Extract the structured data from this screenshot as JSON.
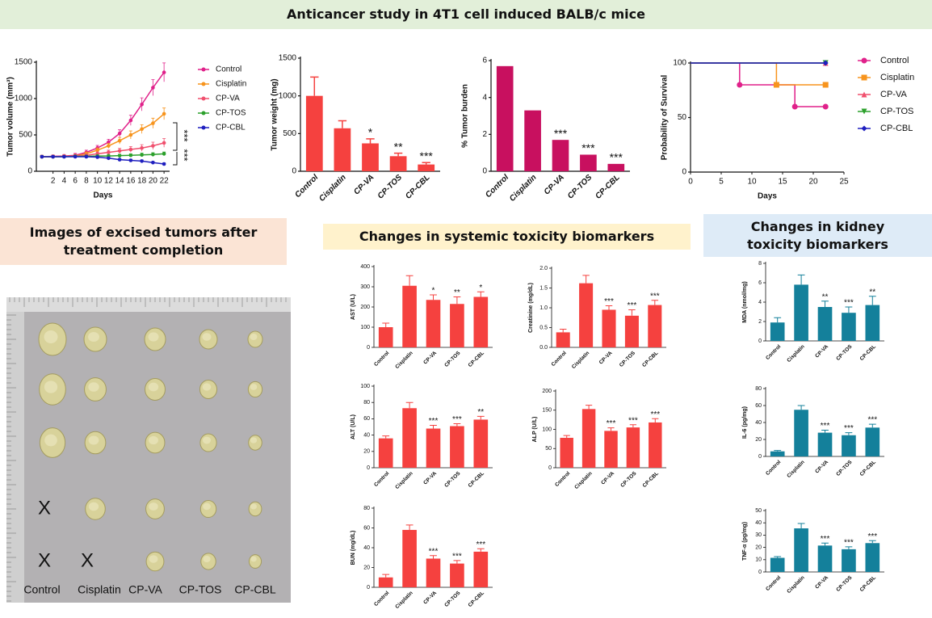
{
  "sections": {
    "main": "Anticancer study in 4T1 cell induced BALB/c mice",
    "images": "Images of excised tumors after treatment completion",
    "systemic": "Changes in systemic toxicity biomarkers",
    "kidney": "Changes in kidney toxicity biomarkers"
  },
  "photo": {
    "groups": [
      "Control",
      "Cisplatin",
      "CP-VA",
      "CP-TOS",
      "CP-CBL"
    ],
    "absent": "X"
  },
  "chart_data": [
    {
      "type": "line",
      "xlabel": "Days",
      "ylabel": "Tumor volume (mm³)",
      "x": [
        0,
        2,
        4,
        6,
        8,
        10,
        12,
        14,
        16,
        18,
        20,
        22
      ],
      "xlim": [
        -1,
        23
      ],
      "xticks": [
        2,
        4,
        6,
        8,
        10,
        12,
        14,
        16,
        18,
        20,
        22
      ],
      "ylim": [
        0,
        1500
      ],
      "yticks": [
        0,
        500,
        1000,
        1500
      ],
      "annotations": [
        "***",
        "***"
      ],
      "series": [
        {
          "name": "Control",
          "color": "#e0218a",
          "values": [
            200,
            205,
            210,
            220,
            260,
            320,
            400,
            520,
            700,
            920,
            1150,
            1360
          ],
          "errors": [
            20,
            20,
            20,
            25,
            30,
            35,
            40,
            50,
            70,
            90,
            110,
            130
          ]
        },
        {
          "name": "Cisplatin",
          "color": "#f7941d",
          "values": [
            200,
            200,
            205,
            210,
            240,
            290,
            350,
            420,
            500,
            580,
            660,
            790
          ],
          "errors": [
            20,
            20,
            20,
            20,
            25,
            30,
            35,
            45,
            55,
            60,
            70,
            80
          ]
        },
        {
          "name": "CP-VA",
          "color": "#f0506e",
          "values": [
            200,
            200,
            205,
            210,
            220,
            240,
            260,
            280,
            300,
            320,
            350,
            390
          ],
          "errors": [
            15,
            15,
            15,
            15,
            20,
            25,
            30,
            35,
            40,
            45,
            50,
            60
          ]
        },
        {
          "name": "CP-TOS",
          "color": "#2ca02c",
          "values": [
            200,
            200,
            200,
            205,
            205,
            210,
            210,
            215,
            220,
            225,
            230,
            240
          ],
          "errors": [
            15,
            15,
            15,
            15,
            15,
            15,
            20,
            20,
            20,
            25,
            25,
            25
          ]
        },
        {
          "name": "CP-CBL",
          "color": "#1f1fbf",
          "values": [
            200,
            200,
            200,
            200,
            200,
            195,
            180,
            160,
            150,
            140,
            120,
            100
          ],
          "errors": [
            15,
            15,
            15,
            15,
            15,
            15,
            15,
            15,
            15,
            15,
            15,
            15
          ]
        }
      ]
    },
    {
      "type": "bar",
      "ylabel": "Tumor weight (mg)",
      "categories": [
        "Control",
        "Cisplatin",
        "CP-VA",
        "CP-TOS",
        "CP-CBL"
      ],
      "values": [
        1000,
        570,
        370,
        200,
        90
      ],
      "errors": [
        250,
        100,
        60,
        40,
        25
      ],
      "significance": [
        null,
        null,
        "*",
        "**",
        "***"
      ],
      "color": "#f5413f",
      "ylim": [
        0,
        1500
      ],
      "yticks": [
        0,
        500,
        1000,
        1500
      ]
    },
    {
      "type": "bar",
      "ylabel": "% Tumor burden",
      "categories": [
        "Control",
        "Cisplatin",
        "CP-VA",
        "CP-TOS",
        "CP-CBL"
      ],
      "values": [
        5.7,
        3.3,
        1.7,
        0.9,
        0.4
      ],
      "significance": [
        null,
        null,
        "***",
        "***",
        "***"
      ],
      "color": "#c8105f",
      "ylim": [
        0,
        6
      ],
      "yticks": [
        0,
        2,
        4,
        6
      ]
    },
    {
      "type": "step",
      "xlabel": "Days",
      "ylabel": "Probability of Survival",
      "xlim": [
        0,
        25
      ],
      "xticks": [
        0,
        5,
        10,
        15,
        20,
        25
      ],
      "ylim": [
        0,
        100
      ],
      "yticks": [
        0,
        50,
        100
      ],
      "series": [
        {
          "name": "Control",
          "color": "#e0218a",
          "marker": "circle",
          "x": [
            0,
            8,
            17,
            22
          ],
          "values": [
            100,
            80,
            60,
            60
          ]
        },
        {
          "name": "Cisplatin",
          "color": "#f7941d",
          "marker": "square",
          "x": [
            0,
            14,
            22
          ],
          "values": [
            100,
            80,
            80
          ]
        },
        {
          "name": "CP-VA",
          "color": "#f0506e",
          "marker": "triangle",
          "x": [
            0,
            22
          ],
          "values": [
            100,
            100
          ]
        },
        {
          "name": "CP-TOS",
          "color": "#2ca02c",
          "marker": "triangle-down",
          "x": [
            0,
            22
          ],
          "values": [
            100,
            100
          ]
        },
        {
          "name": "CP-CBL",
          "color": "#1f1fbf",
          "marker": "diamond",
          "x": [
            0,
            22
          ],
          "values": [
            100,
            100
          ]
        }
      ]
    },
    {
      "type": "bar",
      "ylabel": "AST (U/L)",
      "categories": [
        "Control",
        "Cisplatin",
        "CP-VA",
        "CP-TOS",
        "CP-CBL"
      ],
      "values": [
        100,
        305,
        235,
        215,
        250
      ],
      "errors": [
        20,
        50,
        25,
        35,
        25
      ],
      "significance": [
        null,
        null,
        "*",
        "**",
        "*"
      ],
      "color": "#f5413f",
      "ylim": [
        0,
        400
      ],
      "yticks": [
        0,
        100,
        200,
        300,
        400
      ]
    },
    {
      "type": "bar",
      "ylabel": "Creatinine (mg/dL)",
      "categories": [
        "Control",
        "Cisplatin",
        "CP-VA",
        "CP-TOS",
        "CP-CBL"
      ],
      "values": [
        0.38,
        1.62,
        0.95,
        0.8,
        1.07
      ],
      "errors": [
        0.08,
        0.2,
        0.1,
        0.15,
        0.12
      ],
      "significance": [
        null,
        null,
        "***",
        "***",
        "***"
      ],
      "color": "#f5413f",
      "ylim": [
        0,
        2
      ],
      "yticks": [
        {
          "value": 0,
          "label": "0.0"
        },
        0.5,
        {
          "value": 1,
          "label": "1.0"
        },
        1.5,
        {
          "value": 2,
          "label": "2.0"
        }
      ]
    },
    {
      "type": "bar",
      "ylabel": "ALT (U/L)",
      "categories": [
        "Control",
        "Cisplatin",
        "CP-VA",
        "CP-TOS",
        "CP-CBL"
      ],
      "values": [
        36,
        73,
        48,
        51,
        59
      ],
      "errors": [
        3,
        7,
        4,
        3,
        4
      ],
      "significance": [
        null,
        null,
        "***",
        "***",
        "**"
      ],
      "color": "#f5413f",
      "ylim": [
        0,
        100
      ],
      "yticks": [
        0,
        20,
        40,
        60,
        80,
        100
      ]
    },
    {
      "type": "bar",
      "ylabel": "ALP (U/L)",
      "categories": [
        "Control",
        "Cisplatin",
        "CP-VA",
        "CP-TOS",
        "CP-CBL"
      ],
      "values": [
        78,
        153,
        96,
        105,
        118
      ],
      "errors": [
        6,
        10,
        8,
        7,
        10
      ],
      "significance": [
        null,
        null,
        "***",
        "***",
        "***"
      ],
      "color": "#f5413f",
      "ylim": [
        0,
        200
      ],
      "yticks": [
        0,
        50,
        100,
        150,
        200
      ]
    },
    {
      "type": "bar",
      "ylabel": "BUN (mg/dL)",
      "categories": [
        "Control",
        "Cisplatin",
        "CP-VA",
        "CP-TOS",
        "CP-CBL"
      ],
      "values": [
        10,
        58,
        29,
        24,
        36
      ],
      "errors": [
        3,
        5,
        3,
        3,
        3
      ],
      "significance": [
        null,
        null,
        "***",
        "***",
        "***"
      ],
      "color": "#f5413f",
      "ylim": [
        0,
        80
      ],
      "yticks": [
        0,
        20,
        40,
        60,
        80
      ]
    },
    {
      "type": "bar",
      "ylabel": "MDA (nmol/mg)",
      "categories": [
        "Control",
        "Cisplatin",
        "CP-VA",
        "CP-TOS",
        "CP-CBL"
      ],
      "values": [
        1.9,
        5.8,
        3.5,
        2.9,
        3.7
      ],
      "errors": [
        0.5,
        1,
        0.6,
        0.6,
        0.9
      ],
      "significance": [
        null,
        null,
        "**",
        "***",
        "**"
      ],
      "color": "#14809b",
      "ylim": [
        0,
        8
      ],
      "yticks": [
        0,
        2,
        4,
        6,
        8
      ]
    },
    {
      "type": "bar",
      "ylabel": "IL-6 (pg/mg)",
      "categories": [
        "Control",
        "Cisplatin",
        "CP-VA",
        "CP-TOS",
        "CP-CBL"
      ],
      "values": [
        6,
        55,
        28,
        25,
        34
      ],
      "errors": [
        1,
        5,
        3,
        3,
        4
      ],
      "significance": [
        null,
        null,
        "***",
        "***",
        "***"
      ],
      "color": "#14809b",
      "ylim": [
        0,
        80
      ],
      "yticks": [
        0,
        20,
        40,
        60,
        80
      ]
    },
    {
      "type": "bar",
      "ylabel": "TNF-α (pg/mg)",
      "categories": [
        "Control",
        "Cisplatin",
        "CP-VA",
        "CP-TOS",
        "CP-CBL"
      ],
      "values": [
        11.5,
        35.5,
        21.5,
        18.5,
        23.5
      ],
      "errors": [
        1,
        4,
        2,
        2,
        2
      ],
      "significance": [
        null,
        null,
        "***",
        "***",
        "***"
      ],
      "color": "#14809b",
      "ylim": [
        0,
        50
      ],
      "yticks": [
        0,
        10,
        20,
        30,
        40,
        50
      ]
    }
  ]
}
